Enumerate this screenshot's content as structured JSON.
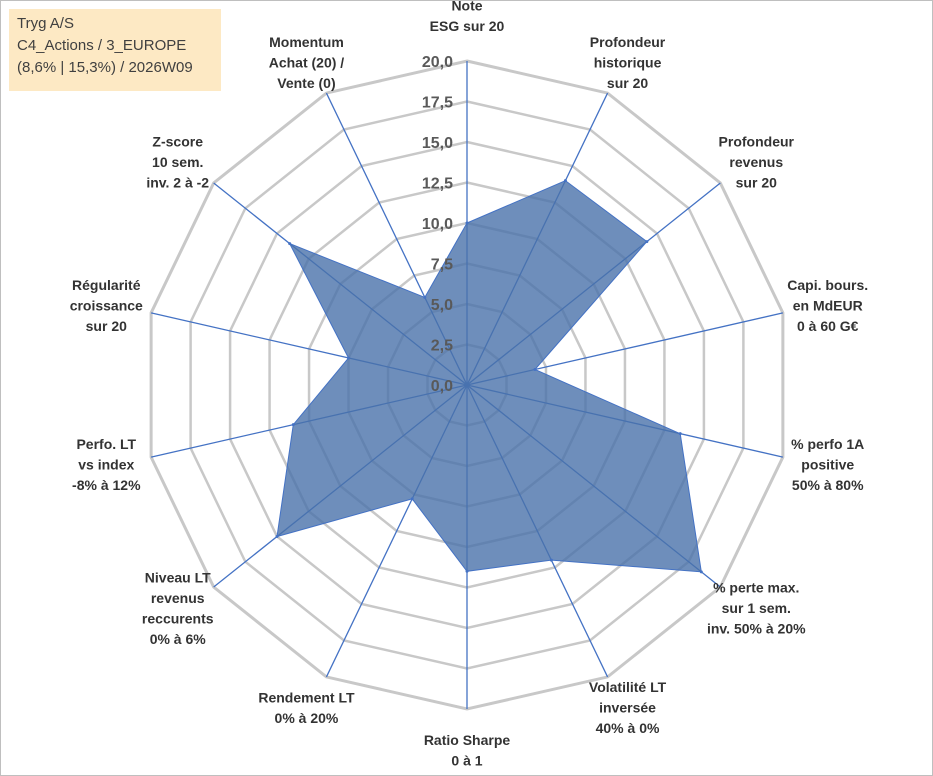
{
  "info_box": {
    "line1": "Tryg A/S",
    "line2": "C4_Actions / 3_EUROPE",
    "line3": "(8,6% | 15,3%) / 2026W09"
  },
  "colors": {
    "fill": "#4a72aa",
    "stroke": "#4472c4",
    "grid": "#c8c8c8",
    "spoke": "#4472c4",
    "info_bg": "#fde9c4"
  },
  "chart_data": {
    "type": "radar",
    "rmin": 0,
    "rmax": 20,
    "ticks": [
      0,
      2.5,
      5,
      7.5,
      10,
      12.5,
      15,
      17.5,
      20
    ],
    "tick_labels": [
      "0,0",
      "2,5",
      "5,0",
      "7,5",
      "10,0",
      "12,5",
      "15,0",
      "17,5",
      "20,0"
    ],
    "axes": [
      {
        "label": [
          "Note",
          "ESG sur 20"
        ],
        "value": 10.0
      },
      {
        "label": [
          "Profondeur",
          "historique",
          "sur 20"
        ],
        "value": 14.0
      },
      {
        "label": [
          "Profondeur",
          "revenus",
          "sur 20"
        ],
        "value": 14.2
      },
      {
        "label": [
          "Capi. bours.",
          "en MdEUR",
          "0 à 60 G€"
        ],
        "value": 4.3
      },
      {
        "label": [
          "% perfo 1A",
          "positive",
          "50% à 80%"
        ],
        "value": 13.5
      },
      {
        "label": [
          "% perte max.",
          "sur 1 sem.",
          "inv. 50% à 20%"
        ],
        "value": 18.5
      },
      {
        "label": [
          "Volatilité LT",
          "inversée",
          "40% à 0%"
        ],
        "value": 12.0
      },
      {
        "label": [
          "Ratio Sharpe",
          "0 à 1"
        ],
        "value": 11.5
      },
      {
        "label": [
          "Rendement LT",
          "0% à 20%"
        ],
        "value": 7.8
      },
      {
        "label": [
          "Niveau LT",
          "revenus",
          "reccurents",
          "0% à 6%"
        ],
        "value": 15.0
      },
      {
        "label": [
          "Perfo. LT",
          "vs index",
          "-8% à 12%"
        ],
        "value": 11.0
      },
      {
        "label": [
          "Régularité",
          "croissance",
          "sur 20"
        ],
        "value": 7.5
      },
      {
        "label": [
          "Z-score",
          "10 sem.",
          "inv. 2 à -2"
        ],
        "value": 14.0
      },
      {
        "label": [
          "Momentum",
          "Achat (20) /",
          "Vente (0)"
        ],
        "value": 6.0
      }
    ]
  }
}
